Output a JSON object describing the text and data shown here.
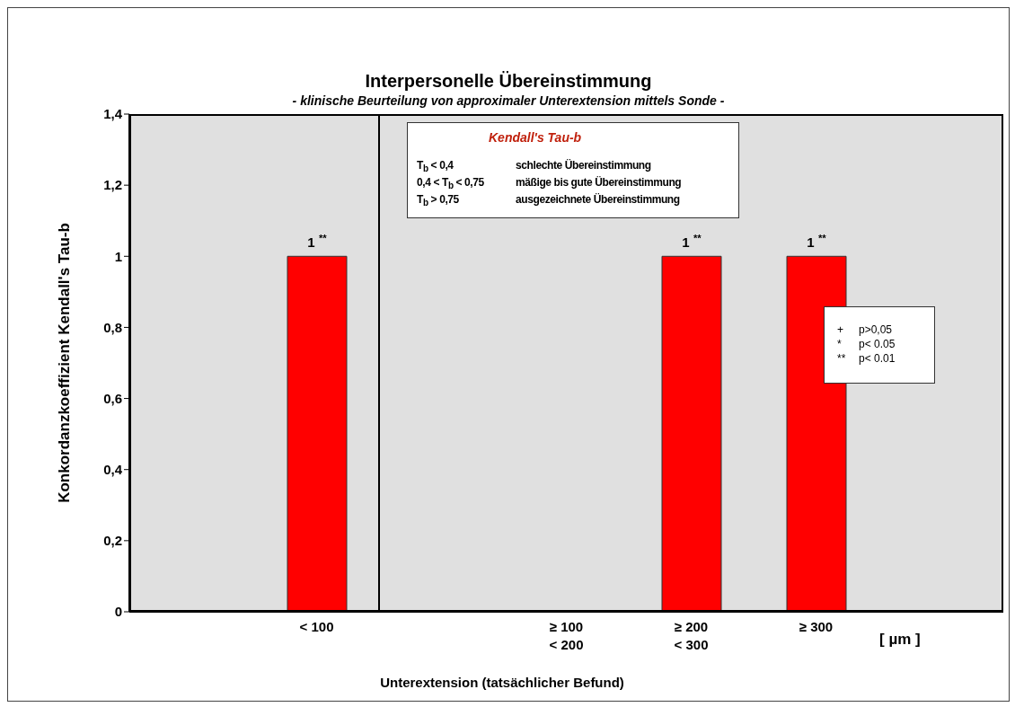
{
  "chart_data": {
    "type": "bar",
    "title": "Interpersonelle Übereinstimmung",
    "subtitle": "- klinische Beurteilung von approximaler Unterextension mittels Sonde -",
    "xlabel": "Unterextension (tatsächlicher Befund)",
    "ylabel": "Konkordanzkoeffizient Kendall's Tau-b",
    "categories": [
      null,
      "< 100",
      null,
      "≥ 100\n< 200",
      "≥ 200\n< 300",
      "≥ 300",
      null
    ],
    "values": [
      null,
      1,
      null,
      null,
      1,
      1,
      null
    ],
    "color": "#ff0000",
    "value_labels": [
      null,
      "1 $^{**}$",
      null,
      null,
      "1 $^{**}$",
      "1 $^{**}$",
      null
    ],
    "ylim": [
      0,
      1.4
    ],
    "yticks": [
      0,
      {
        "value": 0.2,
        "label": "0,2"
      },
      {
        "value": 0.4,
        "label": "0,4"
      },
      {
        "value": 0.6,
        "label": "0,6"
      },
      {
        "value": 0.8,
        "label": "0,8"
      },
      1,
      {
        "value": 1.2,
        "label": "1,2"
      },
      {
        "value": 1.4,
        "label": "1,4"
      }
    ],
    "grid": false,
    "annotations": [
      "Kendall's Tau-b",
      "T$_{b}$ < 0,4",
      "schlechte Übereinstimmung",
      "0,4 < T$_{b}$ < 0,75",
      "mäßige bis gute Übereinstimmung",
      "T$_{b}$ > 0,75",
      "ausgezeichnete Übereinstimmung",
      "+",
      "p>0,05",
      "*",
      "p< 0.05",
      "**",
      "p< 0.01",
      "[ µm ]"
    ]
  }
}
